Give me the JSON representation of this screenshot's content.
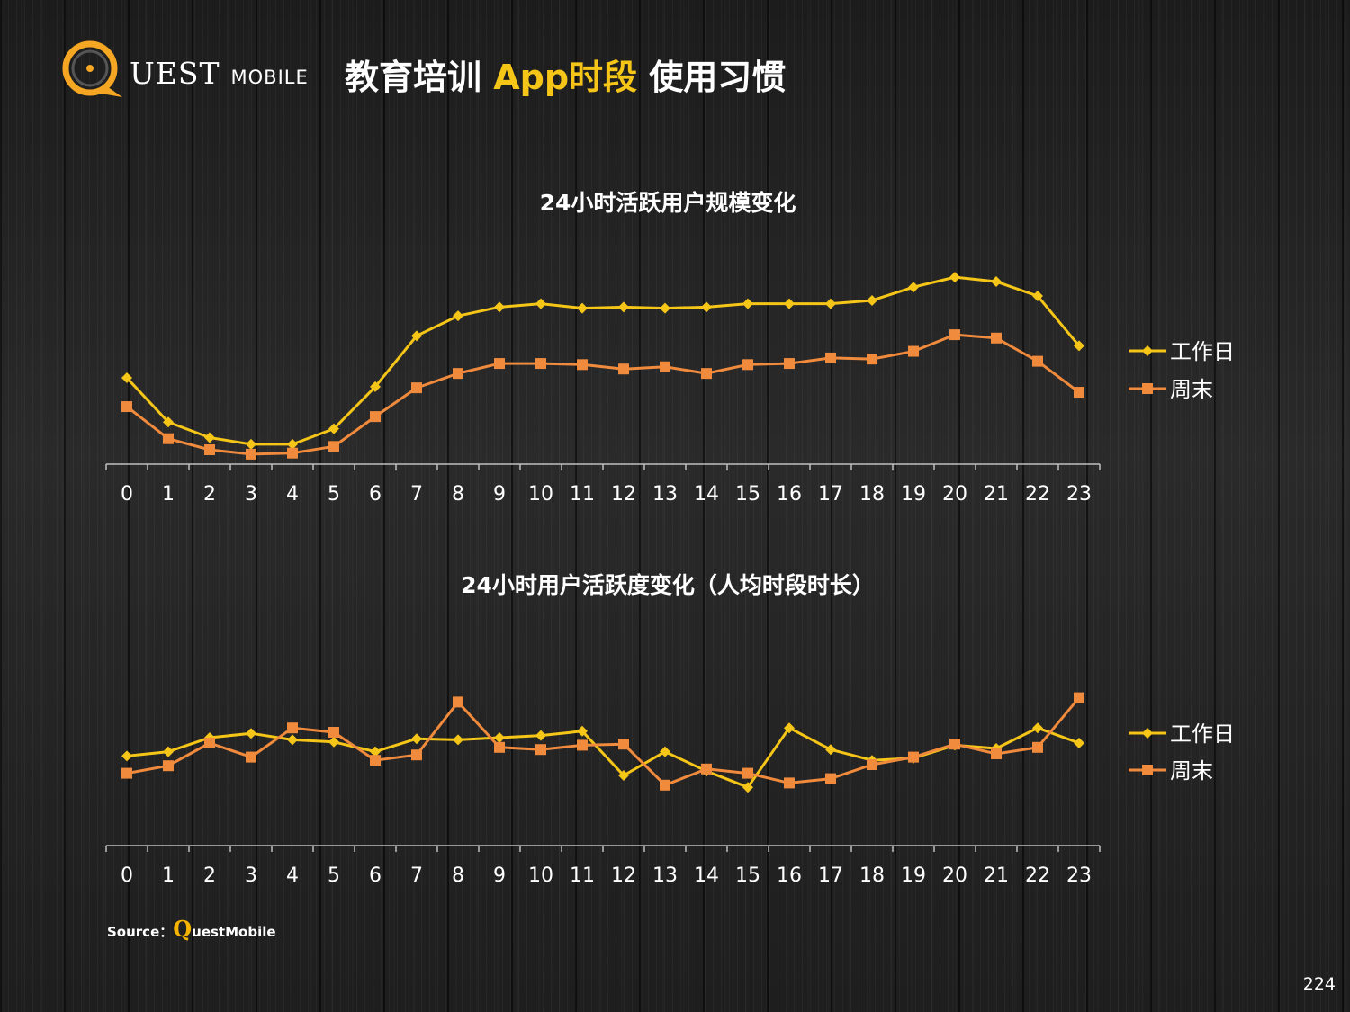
{
  "header": {
    "logo": {
      "main": "UEST",
      "sub": "MOBILE",
      "accent": "#f5a623"
    },
    "title": {
      "pre": "教育培训 ",
      "highlight": "App时段",
      "post": " 使用习惯"
    }
  },
  "chart_data": [
    {
      "type": "line",
      "title": "24小时活跃用户规模变化",
      "categories": [
        "0",
        "1",
        "2",
        "3",
        "4",
        "5",
        "6",
        "7",
        "8",
        "9",
        "10",
        "11",
        "12",
        "13",
        "14",
        "15",
        "16",
        "17",
        "18",
        "19",
        "20",
        "21",
        "22",
        "23"
      ],
      "ylim": [
        0,
        100
      ],
      "grid": false,
      "legend": "right",
      "series": [
        {
          "name": "工作日",
          "color": "#f5c518",
          "marker": "diamond",
          "values": [
            39,
            19,
            12,
            9,
            9,
            16,
            35,
            58,
            67,
            71,
            72.5,
            70.5,
            71,
            70.5,
            71,
            72.5,
            72.5,
            72.5,
            74,
            80,
            84.5,
            82.5,
            76,
            53.5
          ]
        },
        {
          "name": "周末",
          "color": "#f08a3c",
          "marker": "square",
          "values": [
            26,
            11.5,
            6.5,
            4.5,
            5,
            8,
            21.5,
            34.5,
            41,
            45.5,
            45.5,
            45,
            43,
            44,
            41,
            45,
            45.5,
            48,
            47.5,
            51,
            58.5,
            57,
            46.5,
            32.5
          ]
        }
      ]
    },
    {
      "type": "line",
      "title": "24小时用户活跃度变化（人均时段时长）",
      "categories": [
        "0",
        "1",
        "2",
        "3",
        "4",
        "5",
        "6",
        "7",
        "8",
        "9",
        "10",
        "11",
        "12",
        "13",
        "14",
        "15",
        "16",
        "17",
        "18",
        "19",
        "20",
        "21",
        "22",
        "23"
      ],
      "ylim": [
        0,
        100
      ],
      "grid": false,
      "legend": "right",
      "series": [
        {
          "name": "工作日",
          "color": "#f5c518",
          "marker": "diamond",
          "values": [
            41.5,
            43.5,
            50,
            52,
            49,
            48,
            43.5,
            49.5,
            49,
            50,
            51,
            53,
            32.5,
            43.5,
            34.5,
            27,
            54.5,
            44.5,
            39.5,
            40.5,
            46.5,
            45,
            54.5,
            47.5
          ]
        },
        {
          "name": "周末",
          "color": "#f08a3c",
          "marker": "square",
          "values": [
            33.5,
            37,
            47.5,
            41,
            54.5,
            52.5,
            39.5,
            42,
            66.5,
            45.5,
            44.5,
            46.5,
            47,
            28,
            35.5,
            33.5,
            29,
            31,
            37.5,
            41,
            47,
            42.5,
            45.5,
            68.5
          ]
        }
      ]
    }
  ],
  "footer": {
    "source_prefix": "Source：",
    "source_q": "Q",
    "source_rest": "uestMobile",
    "page": "224"
  }
}
